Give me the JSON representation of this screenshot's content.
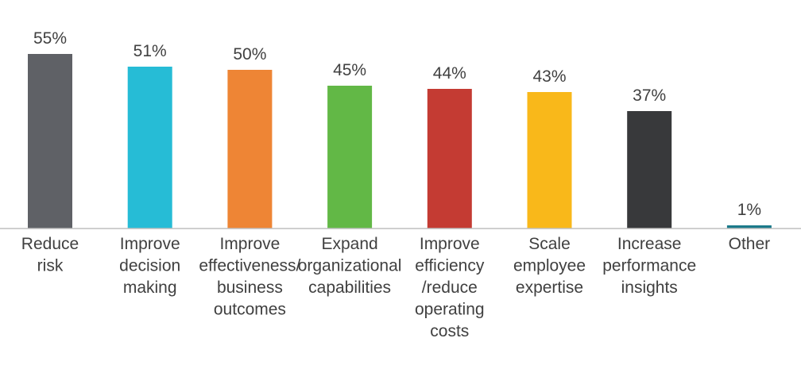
{
  "chart_data": {
    "type": "bar",
    "title": "",
    "xlabel": "",
    "ylabel": "",
    "ylim": [
      0,
      55
    ],
    "grid": false,
    "legend": "none",
    "categories": [
      [
        "Reduce",
        "risk"
      ],
      [
        "Improve",
        "decision",
        "making"
      ],
      [
        "Improve",
        "effectiveness/",
        "business",
        "outcomes"
      ],
      [
        "Expand",
        "organizational",
        "capabilities"
      ],
      [
        "Improve",
        "efficiency",
        "/reduce",
        "operating",
        "costs"
      ],
      [
        "Scale",
        "employee",
        "expertise"
      ],
      [
        "Increase",
        "performance",
        "insights"
      ],
      [
        "Other"
      ]
    ],
    "values": [
      55,
      51,
      50,
      45,
      44,
      43,
      37,
      1
    ],
    "value_labels": [
      "55%",
      "51%",
      "50%",
      "45%",
      "44%",
      "43%",
      "37%",
      "1%"
    ],
    "colors": [
      "#5f6166",
      "#26bcd6",
      "#ee8535",
      "#62b846",
      "#c43b33",
      "#f9b81a",
      "#38393b",
      "#1b7a8a"
    ],
    "axis_color": "#bfbfbf",
    "label_color": "#404040"
  }
}
